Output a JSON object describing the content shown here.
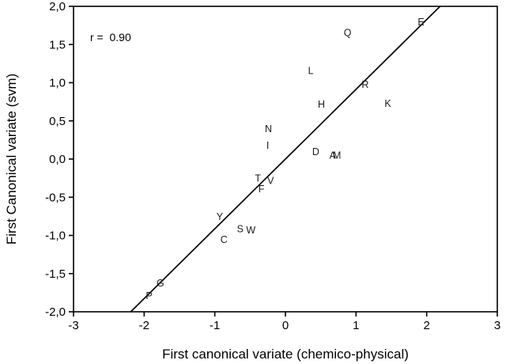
{
  "chart_data": {
    "type": "scatter",
    "title": "",
    "xlabel": "First canonical variate (chemico-physical)",
    "ylabel": "First Canonical variate (svm)",
    "xlim": [
      -3,
      3
    ],
    "ylim": [
      -2,
      2
    ],
    "grid": false,
    "legend": "none",
    "decimal_separator_y_ticks": "comma",
    "annotation": {
      "text": "r =  0.90",
      "r_value": "0.90"
    },
    "x_ticks": [
      {
        "v": -3,
        "label": "-3"
      },
      {
        "v": -2,
        "label": "-2"
      },
      {
        "v": -1,
        "label": "-1"
      },
      {
        "v": 0,
        "label": "0"
      },
      {
        "v": 1,
        "label": "1"
      },
      {
        "v": 2,
        "label": "2"
      },
      {
        "v": 3,
        "label": "3"
      }
    ],
    "y_ticks": [
      {
        "v": 2.0,
        "label": "2,0"
      },
      {
        "v": 1.5,
        "label": "1,5"
      },
      {
        "v": 1.0,
        "label": "1,0"
      },
      {
        "v": 0.5,
        "label": "0,5"
      },
      {
        "v": 0.0,
        "label": "0,0"
      },
      {
        "v": -0.5,
        "label": "-0,5"
      },
      {
        "v": -1.0,
        "label": "-1,0"
      },
      {
        "v": -1.5,
        "label": "-1,5"
      },
      {
        "v": -2.0,
        "label": "-2,0"
      }
    ],
    "points": [
      {
        "label": "E",
        "x": 1.92,
        "y": 1.8
      },
      {
        "label": "Q",
        "x": 0.88,
        "y": 1.66
      },
      {
        "label": "L",
        "x": 0.36,
        "y": 1.16
      },
      {
        "label": "R",
        "x": 1.13,
        "y": 0.98
      },
      {
        "label": "K",
        "x": 1.45,
        "y": 0.73
      },
      {
        "label": "H",
        "x": 0.51,
        "y": 0.72
      },
      {
        "label": "N",
        "x": -0.24,
        "y": 0.4
      },
      {
        "label": "I",
        "x": -0.25,
        "y": 0.18
      },
      {
        "label": "D",
        "x": 0.43,
        "y": 0.1
      },
      {
        "label": "A",
        "x": 0.67,
        "y": 0.05
      },
      {
        "label": "M",
        "x": 0.73,
        "y": 0.05
      },
      {
        "label": "T",
        "x": -0.39,
        "y": -0.25
      },
      {
        "label": "V",
        "x": -0.21,
        "y": -0.28
      },
      {
        "label": "F",
        "x": -0.34,
        "y": -0.39
      },
      {
        "label": "Y",
        "x": -0.93,
        "y": -0.75
      },
      {
        "label": "S",
        "x": -0.64,
        "y": -0.91
      },
      {
        "label": "W",
        "x": -0.49,
        "y": -0.93
      },
      {
        "label": "C",
        "x": -0.87,
        "y": -1.05
      },
      {
        "label": "G",
        "x": -1.77,
        "y": -1.62
      },
      {
        "label": "P",
        "x": -1.93,
        "y": -1.79
      }
    ],
    "fit_line": {
      "x1": -2.19,
      "y1": -2.0,
      "x2": 2.19,
      "y2": 2.0
    },
    "colors": {
      "background": "#ffffff",
      "frame_stroke": "#000000",
      "fit_line_stroke": "#000000",
      "tick_text": "#000000",
      "point_text": "#1c1c1c"
    }
  }
}
